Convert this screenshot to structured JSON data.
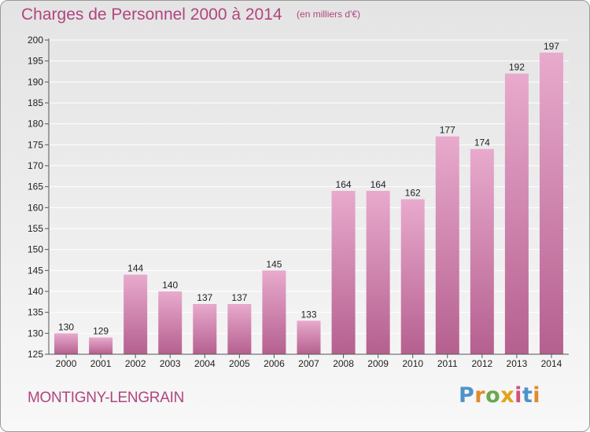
{
  "title": "Charges de Personnel 2000 à 2014",
  "subtitle": "(en milliers d'€)",
  "commune": "MONTIGNY-LENGRAIN",
  "brand": {
    "name": "Proxiti",
    "letters": [
      "P",
      "r",
      "o",
      "x",
      "i",
      "t",
      "i"
    ],
    "letter_colors": [
      "#4e93c8",
      "#e08a2b",
      "#6aa84f",
      "#e3a21a",
      "#d64f7c",
      "#4e93c8",
      "#e08a2b"
    ]
  },
  "colors": {
    "accent": "#b0457e",
    "bar_top": "#e8aacd",
    "bar_bottom": "#b5608f",
    "grid": "#ffffff",
    "axis": "#555555"
  },
  "chart_data": {
    "type": "bar",
    "categories": [
      "2000",
      "2001",
      "2002",
      "2003",
      "2004",
      "2005",
      "2006",
      "2007",
      "2008",
      "2009",
      "2010",
      "2011",
      "2012",
      "2013",
      "2014"
    ],
    "values": [
      130,
      129,
      144,
      140,
      137,
      137,
      145,
      133,
      164,
      164,
      162,
      177,
      174,
      192,
      197
    ],
    "ylim": [
      125,
      200
    ],
    "yticks": [
      125,
      130,
      135,
      140,
      145,
      150,
      155,
      160,
      165,
      170,
      175,
      180,
      185,
      190,
      195,
      200
    ],
    "grid": true,
    "legend": "none"
  }
}
